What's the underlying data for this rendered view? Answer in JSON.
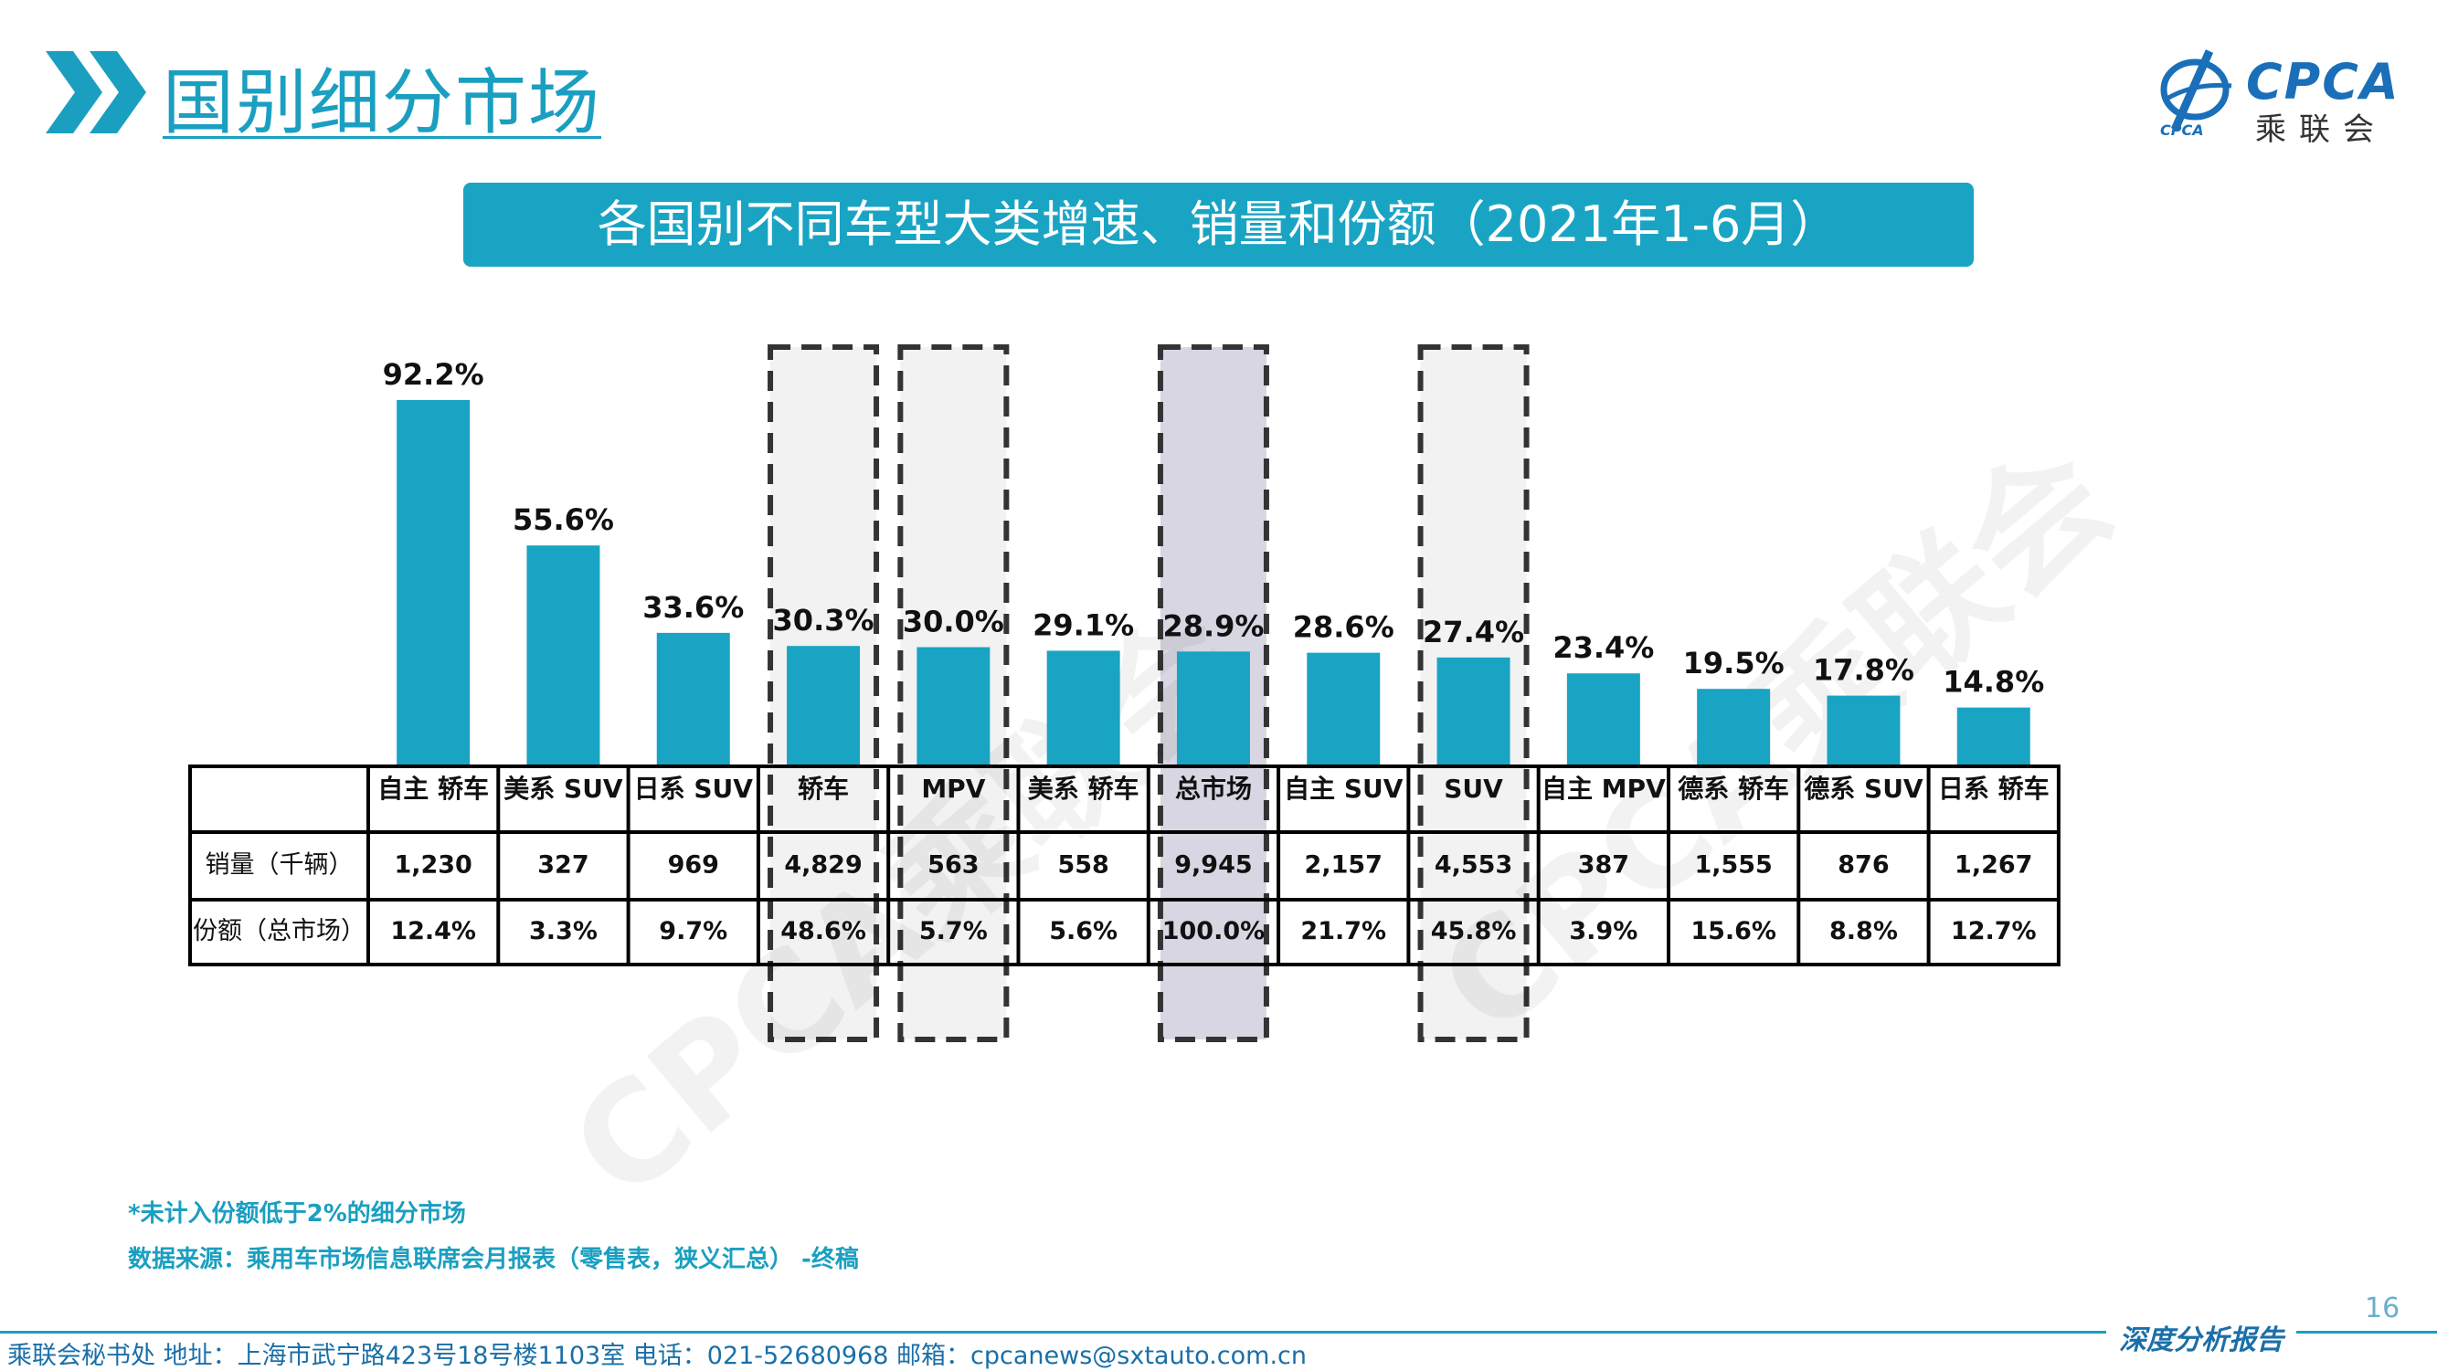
{
  "header": {
    "title": "国别细分市场",
    "logo_text": "CPCA",
    "logo_sub": "乘联会",
    "logo_emblem_text": "CPCA"
  },
  "banner": {
    "text": "各国别不同车型大类增速、销量和份额（2021年1-6月）"
  },
  "colors": {
    "bar": "#1aa4c4",
    "accent": "#1a9fc0",
    "highlight_fill": "#d8d6e2",
    "box_fill": "#f2f2f2"
  },
  "chart_data": {
    "type": "bar",
    "categories": [
      "自主 轿车",
      "美系 SUV",
      "日系 SUV",
      "轿车",
      "MPV",
      "美系 轿车",
      "总市场",
      "自主 SUV",
      "SUV",
      "自主 MPV",
      "德系 轿车",
      "德系 SUV",
      "日系 轿车"
    ],
    "values": [
      92.2,
      55.6,
      33.6,
      30.3,
      30.0,
      29.1,
      28.9,
      28.6,
      27.4,
      23.4,
      19.5,
      17.8,
      14.8
    ],
    "value_labels": [
      "92.2%",
      "55.6%",
      "33.6%",
      "30.3%",
      "30.0%",
      "29.1%",
      "28.9%",
      "28.6%",
      "27.4%",
      "23.4%",
      "19.5%",
      "17.8%",
      "14.8%"
    ],
    "ylim": [
      0,
      100
    ],
    "highlight": [
      "轿车",
      "MPV",
      "总市场",
      "SUV"
    ],
    "shaded": [
      "总市场"
    ],
    "table": {
      "rows": [
        {
          "label": "销量（千辆）",
          "values": [
            "1,230",
            "327",
            "969",
            "4,829",
            "563",
            "558",
            "9,945",
            "2,157",
            "4,553",
            "387",
            "1,555",
            "876",
            "1,267"
          ]
        },
        {
          "label": "份额（总市场）",
          "values": [
            "12.4%",
            "3.3%",
            "9.7%",
            "48.6%",
            "5.7%",
            "5.6%",
            "100.0%",
            "21.7%",
            "45.8%",
            "3.9%",
            "15.6%",
            "8.8%",
            "12.7%"
          ]
        }
      ]
    }
  },
  "watermark": "CPCA乘联会",
  "notes": {
    "footnote": "*未计入份额低于2%的细分市场",
    "source": "数据来源：乘用车市场信息联席会月报表（零售表，狭义汇总） -终稿"
  },
  "footer": {
    "page_number": "16",
    "contact": "乘联会秘书处   地址：上海市武宁路423号18号楼1103室   电话：021-52680968   邮箱：cpcanews@sxtauto.com.cn",
    "report_tag": "深度分析报告"
  }
}
